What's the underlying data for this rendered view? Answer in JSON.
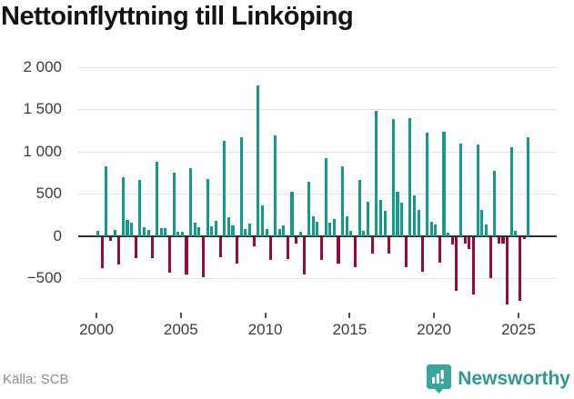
{
  "title": "Nettoinflyttning till Linköping",
  "source": "Källa: SCB",
  "brand": {
    "name": "Newsworthy",
    "logo_icon": "bar-chart-pin-icon"
  },
  "colors": {
    "positive_bar": "#14998f",
    "negative_bar": "#990a3e",
    "gridline": "#e3e3e3",
    "zero_line": "#2e2e2e",
    "title_text": "#141414",
    "axis_text": "#3c3c3c",
    "source_text": "#8c8c8c",
    "brand_teal": "#2f9a94"
  },
  "chart_data": {
    "type": "bar",
    "title": "Nettoinflyttning till Linköping",
    "xlabel": "",
    "ylabel": "",
    "ylim": [
      -900,
      2050
    ],
    "grid": true,
    "legend": "none",
    "y_ticks": [
      {
        "label": "2 000",
        "value": 2000
      },
      {
        "label": "1 500",
        "value": 1500
      },
      {
        "label": "1 000",
        "value": 1000
      },
      {
        "label": "500",
        "value": 500
      },
      {
        "label": "0",
        "value": 0
      },
      {
        "label": "−500",
        "value": -500
      }
    ],
    "x_ticks": [
      2000,
      2005,
      2010,
      2015,
      2020,
      2025
    ],
    "period": "quarterly",
    "series": [
      {
        "year": 2000,
        "quarters": [
          60,
          -370,
          830,
          -45
        ]
      },
      {
        "year": 2001,
        "quarters": [
          75,
          -330,
          700,
          190
        ]
      },
      {
        "year": 2002,
        "quarters": [
          160,
          -250,
          660,
          100
        ]
      },
      {
        "year": 2003,
        "quarters": [
          70,
          -250,
          880,
          90
        ]
      },
      {
        "year": 2004,
        "quarters": [
          95,
          -430,
          745,
          50
        ]
      },
      {
        "year": 2005,
        "quarters": [
          50,
          -445,
          800,
          160
        ]
      },
      {
        "year": 2006,
        "quarters": [
          100,
          -480,
          670,
          115
        ]
      },
      {
        "year": 2007,
        "quarters": [
          180,
          -240,
          1130,
          225
        ]
      },
      {
        "year": 2008,
        "quarters": [
          125,
          -320,
          1170,
          80
        ]
      },
      {
        "year": 2009,
        "quarters": [
          150,
          -115,
          1780,
          365
        ]
      },
      {
        "year": 2010,
        "quarters": [
          85,
          -275,
          1190,
          85
        ]
      },
      {
        "year": 2011,
        "quarters": [
          125,
          -260,
          520,
          -80
        ]
      },
      {
        "year": 2012,
        "quarters": [
          45,
          -445,
          645,
          230
        ]
      },
      {
        "year": 2013,
        "quarters": [
          170,
          -275,
          920,
          155
        ]
      },
      {
        "year": 2014,
        "quarters": [
          200,
          -315,
          825,
          230
        ]
      },
      {
        "year": 2015,
        "quarters": [
          60,
          -355,
          665,
          60
        ]
      },
      {
        "year": 2016,
        "quarters": [
          400,
          -195,
          1480,
          425
        ]
      },
      {
        "year": 2017,
        "quarters": [
          300,
          -200,
          1390,
          520
        ]
      },
      {
        "year": 2018,
        "quarters": [
          390,
          -355,
          1400,
          485
        ]
      },
      {
        "year": 2019,
        "quarters": [
          310,
          -410,
          1220,
          170
        ]
      },
      {
        "year": 2020,
        "quarters": [
          135,
          -310,
          1240,
          35
        ]
      },
      {
        "year": 2021,
        "quarters": [
          -90,
          -635,
          1100,
          -75
        ]
      },
      {
        "year": 2022,
        "quarters": [
          -145,
          -680,
          1080,
          310
        ]
      },
      {
        "year": 2023,
        "quarters": [
          135,
          -490,
          775,
          -75
        ]
      },
      {
        "year": 2024,
        "quarters": [
          -75,
          -800,
          1055,
          60
        ]
      },
      {
        "year": 2025,
        "quarters": [
          -760,
          -30,
          1175
        ]
      }
    ]
  }
}
